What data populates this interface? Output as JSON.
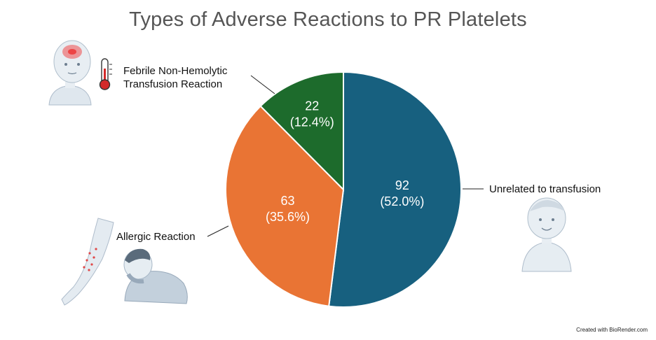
{
  "chart_data": {
    "type": "pie",
    "title": "Types of Adverse Reactions to PR Platelets",
    "slices": [
      {
        "label": "Unrelated to transfusion",
        "value": 92,
        "percent": "52.0%",
        "color": "#17607f"
      },
      {
        "label": "Allergic Reaction",
        "value": 63,
        "percent": "35.6%",
        "color": "#e97434"
      },
      {
        "label": "Febrile Non-Hemolytic Transfusion Reaction",
        "label_lines": [
          "Febrile Non-Hemolytic",
          "Transfusion Reaction"
        ],
        "value": 22,
        "percent": "12.4%",
        "color": "#1d6b2c"
      }
    ]
  },
  "illustrations": [
    "feverish-child-icon",
    "thermometer-icon",
    "rash-arm-icon",
    "coughing-man-icon",
    "healthy-child-icon"
  ],
  "credit": "Created with BioRender.com"
}
